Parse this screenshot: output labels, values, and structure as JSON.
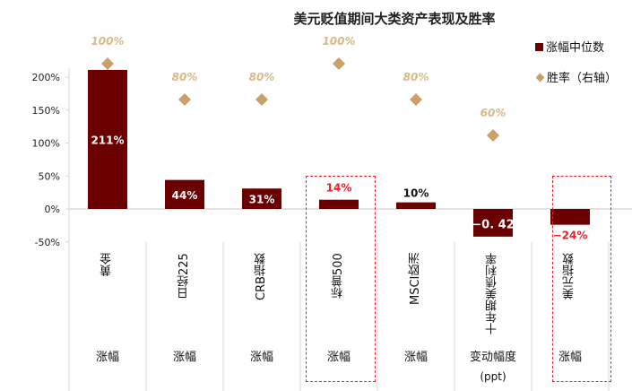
{
  "chart_data": {
    "type": "bar",
    "title": "美元贬值期间大类资产表现及胜率",
    "categories": [
      "黄金",
      "日经225",
      "CRB指数",
      "标普500",
      "MSCI欧洲",
      "十年期美债利率",
      "美元指数"
    ],
    "sub_labels": [
      "涨幅",
      "涨幅",
      "涨幅",
      "涨幅",
      "涨幅",
      "变动幅度",
      "涨幅"
    ],
    "sub_note": "(ppt)",
    "series": [
      {
        "name": "涨幅中位数",
        "type": "bar",
        "values": [
          211,
          44,
          31,
          14,
          10,
          -42,
          -24
        ],
        "labels": [
          "211%",
          "44%",
          "31%",
          "14%",
          "10%",
          "−0. 42",
          "−24%"
        ]
      },
      {
        "name": "胜率（右轴）",
        "type": "scatter",
        "values": [
          100,
          80,
          80,
          100,
          80,
          60,
          null
        ],
        "labels": [
          "100%",
          "80%",
          "80%",
          "100%",
          "80%",
          "60%",
          ""
        ]
      }
    ],
    "yticks": [
      "-50%",
      "0%",
      "50%",
      "100%",
      "150%",
      "200%"
    ],
    "ylim": [
      -50,
      220
    ],
    "highlighted": [
      "标普500",
      "美元指数"
    ],
    "legend_position": "top-right",
    "colors": {
      "bar": "#6B0000",
      "win": "#C9A06A",
      "win_label": "#D9B88A",
      "highlight": "#e8212a"
    }
  }
}
